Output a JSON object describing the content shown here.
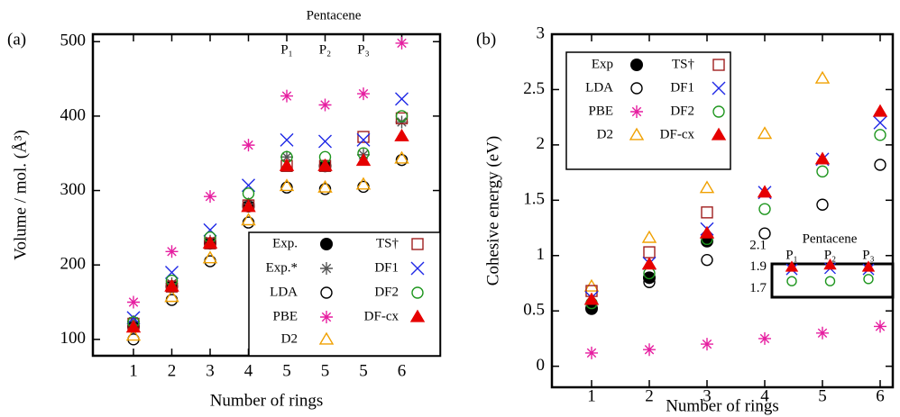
{
  "chart_data": [
    {
      "type": "scatter",
      "panel_label": "(a)",
      "title": "Pentacene",
      "x_label": "Number of rings",
      "y_label": "Volume / mol. (Å³)",
      "categories": [
        "1",
        "2",
        "3",
        "4",
        "5",
        "5",
        "5",
        "6"
      ],
      "top_labels": [
        null,
        null,
        null,
        null,
        "P₁",
        "P₂",
        "P₃",
        null
      ],
      "ylim": [
        78,
        510
      ],
      "yticks": [
        100,
        200,
        300,
        400,
        500
      ],
      "series": [
        {
          "name": "Exp.",
          "color": "#000000",
          "marker": "filled-circle",
          "values": [
            117,
            171,
            229,
            279,
            null,
            333,
            null,
            null
          ]
        },
        {
          "name": "Exp.*",
          "color": "#555555",
          "marker": "asterisk",
          "values": [
            124,
            175,
            232,
            282,
            345,
            null,
            348,
            392
          ]
        },
        {
          "name": "LDA",
          "color": "#000000",
          "marker": "open-circle",
          "values": [
            100,
            153,
            205,
            257,
            304,
            302,
            305,
            341
          ]
        },
        {
          "name": "PBE",
          "color": "#e61ea0",
          "marker": "asterisk",
          "values": [
            150,
            218,
            292,
            361,
            427,
            415,
            430,
            498
          ]
        },
        {
          "name": "D2",
          "color": "#f0a000",
          "marker": "open-triangle",
          "values": [
            105,
            157,
            209,
            260,
            306,
            304,
            308,
            343
          ]
        },
        {
          "name": "TS†",
          "color": "#a01e1e",
          "marker": "open-square",
          "values": [
            121,
            171,
            229,
            280,
            333,
            333,
            372,
            397
          ]
        },
        {
          "name": "DF1",
          "color": "#1e28e6",
          "marker": "cross",
          "values": [
            129,
            190,
            247,
            307,
            368,
            366,
            368,
            423
          ]
        },
        {
          "name": "DF2",
          "color": "#1e961e",
          "marker": "open-circle",
          "values": [
            123,
            179,
            237,
            296,
            345,
            345,
            350,
            400
          ]
        },
        {
          "name": "DF-cx",
          "color": "#e60000",
          "marker": "filled-triangle",
          "values": [
            116,
            171,
            229,
            278,
            333,
            333,
            340,
            373
          ]
        }
      ]
    },
    {
      "type": "scatter",
      "panel_label": "(b)",
      "x_label": "Number of rings",
      "y_label": "Cohesive energy (eV)",
      "categories": [
        "1",
        "2",
        "3",
        "4",
        "5",
        "6"
      ],
      "ylim": [
        -0.19,
        3
      ],
      "yticks": [
        0,
        0.5,
        1,
        1.5,
        2,
        2.5,
        3
      ],
      "series": [
        {
          "name": "Exp",
          "color": "#000000",
          "marker": "filled-circle",
          "values": [
            0.52,
            0.8,
            1.13,
            null,
            null,
            null
          ]
        },
        {
          "name": "LDA",
          "color": "#000000",
          "marker": "open-circle",
          "values": [
            0.53,
            0.76,
            0.96,
            1.2,
            1.46,
            1.82
          ]
        },
        {
          "name": "PBE",
          "color": "#e61ea0",
          "marker": "asterisk",
          "values": [
            0.12,
            0.15,
            0.2,
            0.25,
            0.3,
            0.36
          ]
        },
        {
          "name": "D2",
          "color": "#f0a000",
          "marker": "open-triangle",
          "values": [
            0.72,
            1.16,
            1.61,
            2.1,
            2.6,
            null
          ]
        },
        {
          "name": "TS†",
          "color": "#a01e1e",
          "marker": "open-square",
          "values": [
            0.68,
            1.03,
            1.39,
            null,
            null,
            null
          ]
        },
        {
          "name": "DF1",
          "color": "#1e28e6",
          "marker": "cross",
          "values": [
            0.62,
            0.93,
            1.24,
            1.57,
            1.87,
            2.2
          ]
        },
        {
          "name": "DF2",
          "color": "#1e961e",
          "marker": "open-circle",
          "values": [
            0.57,
            0.84,
            1.15,
            1.42,
            1.76,
            2.09
          ]
        },
        {
          "name": "DF-cx",
          "color": "#e60000",
          "marker": "filled-triangle",
          "values": [
            0.6,
            0.92,
            1.2,
            1.57,
            1.87,
            2.3
          ]
        }
      ]
    },
    {
      "type": "scatter",
      "title": "Pentacene",
      "categories": [
        "P₁",
        "P₂",
        "P₃"
      ],
      "ylim": [
        1.62,
        2.1
      ],
      "yticks": [
        2.1,
        1.9,
        1.7
      ],
      "series": [
        {
          "name": "DF1",
          "color": "#1e28e6",
          "marker": "cross",
          "values": [
            1.88,
            1.89,
            1.88
          ]
        },
        {
          "name": "DF2",
          "color": "#1e961e",
          "marker": "open-circle",
          "values": [
            1.77,
            1.77,
            1.79
          ]
        },
        {
          "name": "DF-cx",
          "color": "#e60000",
          "marker": "filled-triangle",
          "values": [
            1.9,
            1.92,
            1.9
          ]
        }
      ]
    }
  ]
}
